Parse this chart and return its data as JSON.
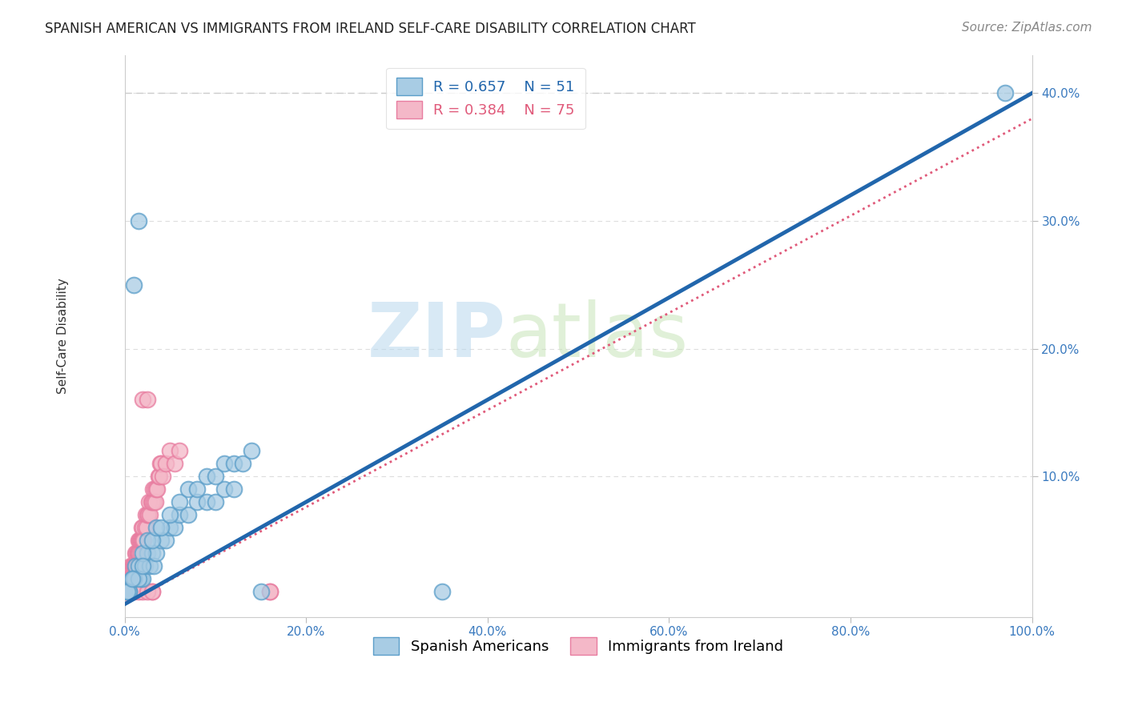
{
  "title": "SPANISH AMERICAN VS IMMIGRANTS FROM IRELAND SELF-CARE DISABILITY CORRELATION CHART",
  "source_text": "Source: ZipAtlas.com",
  "ylabel": "Self-Care Disability",
  "watermark_zip": "ZIP",
  "watermark_atlas": "atlas",
  "blue_label": "Spanish Americans",
  "pink_label": "Immigrants from Ireland",
  "blue_R": 0.657,
  "blue_N": 51,
  "pink_R": 0.384,
  "pink_N": 75,
  "blue_color": "#a8cce4",
  "pink_color": "#f4b8c8",
  "blue_edge_color": "#5b9ec9",
  "pink_edge_color": "#e87da0",
  "blue_line_color": "#2166ac",
  "pink_line_color": "#e05a7a",
  "xlim": [
    0,
    100
  ],
  "ylim": [
    -1,
    43
  ],
  "yticks": [
    10,
    20,
    30,
    40
  ],
  "xticks": [
    0,
    20,
    40,
    60,
    80,
    100
  ],
  "blue_scatter_x": [
    1.0,
    1.5,
    0.3,
    0.5,
    0.8,
    1.0,
    1.2,
    1.5,
    1.8,
    2.0,
    2.2,
    2.5,
    2.8,
    3.0,
    3.2,
    3.5,
    4.0,
    4.5,
    5.0,
    5.5,
    6.0,
    7.0,
    8.0,
    9.0,
    10.0,
    11.0,
    12.0,
    2.0,
    2.5,
    3.0,
    3.5,
    4.0,
    5.0,
    6.0,
    7.0,
    8.0,
    9.0,
    10.0,
    11.0,
    12.0,
    13.0,
    14.0,
    0.5,
    1.0,
    1.5,
    2.0,
    0.3,
    0.8,
    15.0,
    35.0,
    97.0
  ],
  "blue_scatter_y": [
    25,
    30,
    1,
    1,
    2,
    2,
    3,
    3,
    2,
    2,
    3,
    4,
    3,
    4,
    3,
    4,
    5,
    5,
    6,
    6,
    7,
    7,
    8,
    8,
    8,
    9,
    9,
    4,
    5,
    5,
    6,
    6,
    7,
    8,
    9,
    9,
    10,
    10,
    11,
    11,
    11,
    12,
    1,
    2,
    2,
    3,
    1,
    2,
    1,
    1,
    40
  ],
  "pink_scatter_x": [
    0.1,
    0.15,
    0.2,
    0.25,
    0.3,
    0.35,
    0.4,
    0.45,
    0.5,
    0.55,
    0.6,
    0.65,
    0.7,
    0.75,
    0.8,
    0.85,
    0.9,
    0.95,
    1.0,
    1.05,
    1.1,
    1.15,
    1.2,
    1.25,
    1.3,
    1.35,
    1.4,
    1.45,
    1.5,
    1.55,
    1.6,
    1.65,
    1.7,
    1.75,
    1.8,
    1.85,
    1.9,
    1.95,
    2.0,
    2.1,
    2.2,
    2.3,
    2.4,
    2.5,
    2.6,
    2.7,
    2.8,
    2.9,
    3.0,
    3.1,
    3.2,
    3.3,
    3.4,
    3.5,
    3.6,
    3.7,
    3.8,
    3.9,
    4.0,
    4.2,
    4.5,
    5.0,
    5.5,
    6.0,
    2.0,
    16.0,
    16.0,
    2.5,
    3.0,
    0.5,
    1.0,
    1.5,
    2.0,
    2.5,
    3.0
  ],
  "pink_scatter_y": [
    1,
    1,
    1,
    2,
    1,
    2,
    1,
    2,
    2,
    1,
    2,
    3,
    2,
    2,
    3,
    2,
    3,
    2,
    3,
    2,
    3,
    3,
    4,
    3,
    4,
    3,
    4,
    4,
    5,
    4,
    5,
    4,
    5,
    4,
    5,
    5,
    6,
    5,
    6,
    5,
    6,
    7,
    6,
    7,
    7,
    8,
    7,
    8,
    8,
    9,
    8,
    9,
    8,
    9,
    9,
    10,
    10,
    11,
    11,
    10,
    11,
    12,
    11,
    12,
    16,
    1,
    1,
    16,
    1,
    1,
    1,
    1,
    1,
    1,
    1
  ],
  "blue_trend_x": [
    0,
    100
  ],
  "blue_trend_y": [
    0,
    40
  ],
  "pink_trend_x": [
    0,
    100
  ],
  "pink_trend_y": [
    0,
    38
  ],
  "hline_y": 40,
  "hline_color": "#cccccc",
  "grid_color": "#dddddd",
  "title_fontsize": 12,
  "axis_label_fontsize": 11,
  "tick_fontsize": 11,
  "legend_fontsize": 13,
  "source_fontsize": 11
}
